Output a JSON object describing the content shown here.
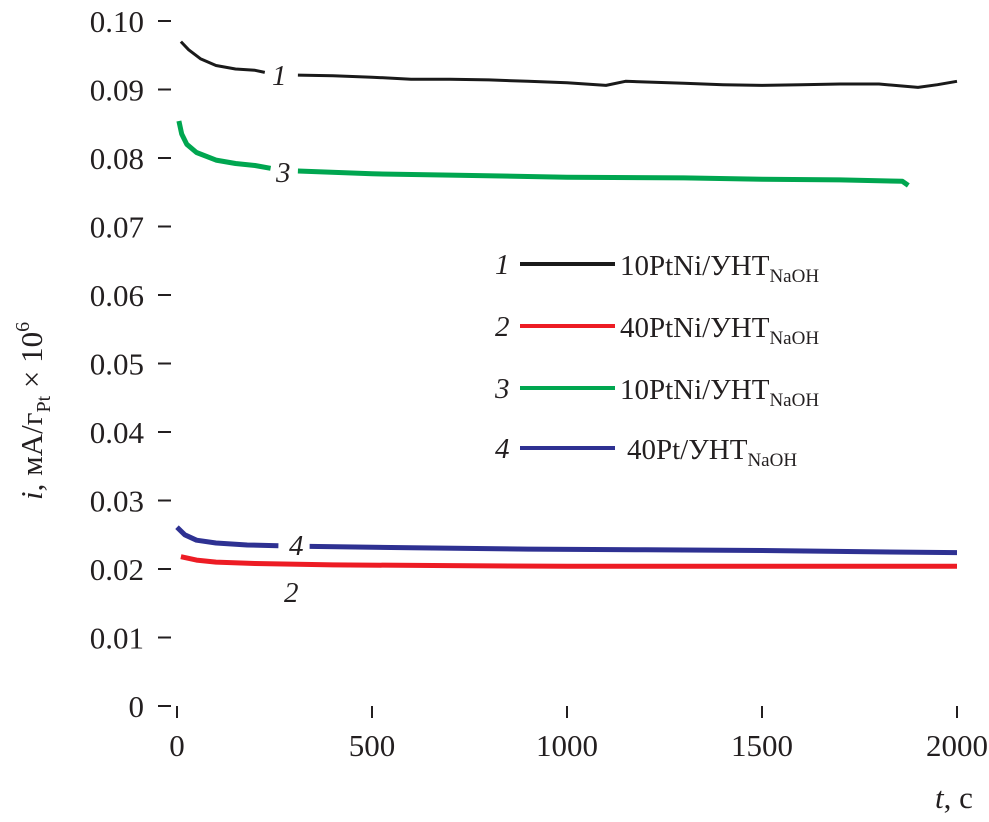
{
  "chart_data": {
    "type": "line",
    "xlabel": {
      "var": "t",
      "unit": ", с"
    },
    "ylabel": {
      "var": "i",
      "unit": ", мА/г",
      "sub": "Pt",
      "mult": " × 10",
      "sup": "6"
    },
    "xlim": [
      0,
      2000
    ],
    "ylim": [
      0,
      0.1
    ],
    "xticks": [
      "0",
      "500",
      "1000",
      "1500",
      "2000"
    ],
    "xtick_values": [
      0,
      500,
      1000,
      1500,
      2000
    ],
    "yticks": [
      "0",
      "0.01",
      "0.02",
      "0.03",
      "0.04",
      "0.05",
      "0.06",
      "0.07",
      "0.08",
      "0.09",
      "0.10"
    ],
    "ytick_values": [
      0,
      0.01,
      0.02,
      0.03,
      0.04,
      0.05,
      0.06,
      0.07,
      0.08,
      0.09,
      0.1
    ],
    "grid": false,
    "legend_position": "center-right",
    "series": [
      {
        "name": "10PtNi/УНТ",
        "sub": "NaOH",
        "number": "1",
        "color": "#1a1a1a",
        "segments": [
          [
            [
              10,
              0.097
            ],
            [
              30,
              0.0958
            ],
            [
              60,
              0.0945
            ],
            [
              100,
              0.0935
            ],
            [
              150,
              0.093
            ],
            [
              200,
              0.0928
            ],
            [
              225,
              0.0925
            ]
          ],
          [
            [
              310,
              0.0921
            ],
            [
              400,
              0.092
            ],
            [
              500,
              0.0918
            ],
            [
              600,
              0.0915
            ],
            [
              700,
              0.0915
            ],
            [
              800,
              0.0914
            ],
            [
              900,
              0.0912
            ],
            [
              1000,
              0.091
            ],
            [
              1100,
              0.0906
            ],
            [
              1150,
              0.0912
            ],
            [
              1300,
              0.0909
            ],
            [
              1400,
              0.0907
            ],
            [
              1500,
              0.0906
            ],
            [
              1600,
              0.0907
            ],
            [
              1700,
              0.0908
            ],
            [
              1800,
              0.0908
            ],
            [
              1900,
              0.0903
            ],
            [
              1950,
              0.0907
            ],
            [
              2000,
              0.0912
            ]
          ]
        ]
      },
      {
        "name": "40PtNi/УНТ",
        "sub": "NaOH",
        "number": "2",
        "color": "#ed1c24",
        "segments": [
          [
            [
              10,
              0.0218
            ],
            [
              50,
              0.0213
            ],
            [
              100,
              0.021
            ],
            [
              200,
              0.0208
            ],
            [
              400,
              0.0206
            ],
            [
              700,
              0.0205
            ],
            [
              1000,
              0.0204
            ],
            [
              1500,
              0.0204
            ],
            [
              2000,
              0.0204
            ]
          ]
        ]
      },
      {
        "name": "10PtNi/УНТ",
        "sub": "NaOH",
        "number": "3",
        "color": "#00a650",
        "segments": [
          [
            [
              5,
              0.0854
            ],
            [
              12,
              0.0835
            ],
            [
              25,
              0.082
            ],
            [
              50,
              0.0808
            ],
            [
              100,
              0.0797
            ],
            [
              150,
              0.0792
            ],
            [
              200,
              0.0789
            ],
            [
              240,
              0.0785
            ]
          ],
          [
            [
              310,
              0.0781
            ],
            [
              500,
              0.0777
            ],
            [
              700,
              0.0775
            ],
            [
              1000,
              0.0772
            ],
            [
              1300,
              0.0771
            ],
            [
              1500,
              0.0769
            ],
            [
              1700,
              0.0768
            ],
            [
              1860,
              0.0766
            ],
            [
              1875,
              0.076
            ]
          ]
        ]
      },
      {
        "name": "40Pt/УНТ",
        "sub": "NaOH",
        "number": "4",
        "color": "#2e3192",
        "segments": [
          [
            [
              0,
              0.0261
            ],
            [
              20,
              0.025
            ],
            [
              50,
              0.0242
            ],
            [
              100,
              0.0238
            ],
            [
              180,
              0.0235
            ],
            [
              260,
              0.0234
            ]
          ],
          [
            [
              340,
              0.0233
            ],
            [
              600,
              0.0231
            ],
            [
              900,
              0.0229
            ],
            [
              1200,
              0.0228
            ],
            [
              1500,
              0.0227
            ],
            [
              1800,
              0.0225
            ],
            [
              2000,
              0.0224
            ]
          ]
        ]
      }
    ]
  }
}
